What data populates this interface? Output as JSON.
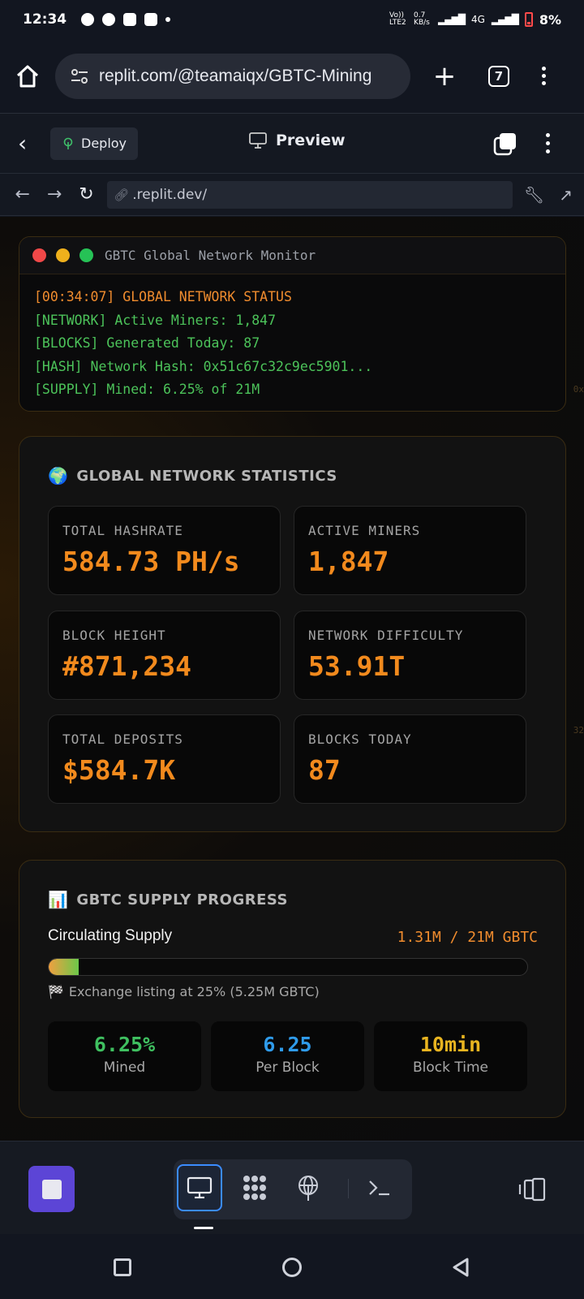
{
  "status_bar": {
    "time": "12:34",
    "battery": "8%",
    "network": "4G",
    "speed": "0.7 KB/s",
    "volte": "Vo)) LTE2"
  },
  "browser": {
    "url": "replit.com/@teamaiqx/GBTC-Mining",
    "tab_count": "7",
    "new_tab": "+"
  },
  "replit_header": {
    "deploy_label": "Deploy",
    "preview_label": "Preview"
  },
  "nav_row": {
    "address": ".replit.dev/"
  },
  "terminal": {
    "title": "GBTC Global Network Monitor",
    "lines": [
      {
        "text": "[00:34:07] GLOBAL NETWORK STATUS",
        "color": "#f08c2e"
      },
      {
        "text": "[NETWORK] Active Miners: 1,847",
        "color": "#4cc35a"
      },
      {
        "text": "[BLOCKS] Generated Today: 87",
        "color": "#4cc35a"
      },
      {
        "text": "[HASH] Network Hash: 0x51c67c32c9ec5901...",
        "color": "#4cc35a"
      },
      {
        "text": "[SUPPLY] Mined: 6.25% of 21M",
        "color": "#4cc35a"
      }
    ]
  },
  "network_stats": {
    "emoji": "🌍",
    "title": "GLOBAL NETWORK STATISTICS",
    "items": [
      {
        "label": "TOTAL HASHRATE",
        "value": "584.73 PH/s"
      },
      {
        "label": "ACTIVE MINERS",
        "value": "1,847"
      },
      {
        "label": "BLOCK HEIGHT",
        "value": "#871,234"
      },
      {
        "label": "NETWORK DIFFICULTY",
        "value": "53.91T"
      },
      {
        "label": "TOTAL DEPOSITS",
        "value": "$584.7K"
      },
      {
        "label": "BLOCKS TODAY",
        "value": "87"
      }
    ]
  },
  "supply": {
    "emoji": "📊",
    "title": "GBTC SUPPLY PROGRESS",
    "circulating_label": "Circulating Supply",
    "circulating_value": "1.31M / 21M GBTC",
    "progress_fraction": 0.0625,
    "listing_icon": "🏁",
    "listing_text": "Exchange listing at 25% (5.25M GBTC)",
    "metrics": [
      {
        "value": "6.25%",
        "label": "Mined",
        "color": "#3fc060"
      },
      {
        "value": "6.25",
        "label": "Per Block",
        "color": "#2f9bea"
      },
      {
        "value": "10min",
        "label": "Block Time",
        "color": "#e8b420"
      }
    ]
  },
  "colors": {
    "accent_orange": "#f28a1d",
    "stop_button": "#5c45d6",
    "active_tab_border": "#3b8cff"
  }
}
